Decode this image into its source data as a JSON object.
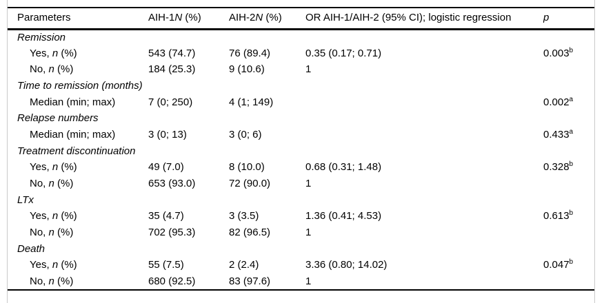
{
  "colors": {
    "rule_black": "#000000",
    "frame_gray": "#c9c9c9",
    "text": "#000000",
    "background": "#ffffff"
  },
  "table": {
    "header": [
      {
        "id": "parameters",
        "segments": [
          {
            "text": "Parameters"
          }
        ]
      },
      {
        "id": "aih1",
        "segments": [
          {
            "text": "AIH-1"
          },
          {
            "text": "N",
            "italic": true
          },
          {
            "text": " (%)"
          }
        ]
      },
      {
        "id": "aih2",
        "segments": [
          {
            "text": "AIH-2"
          },
          {
            "text": "N",
            "italic": true
          },
          {
            "text": " (%)"
          }
        ]
      },
      {
        "id": "or",
        "segments": [
          {
            "text": "OR AIH-1/AIH-2 (95% CI); logistic regression"
          }
        ]
      },
      {
        "id": "p",
        "segments": [
          {
            "text": "p",
            "italic": true
          }
        ]
      }
    ],
    "rows": [
      {
        "type": "section",
        "segments": [
          {
            "text": "Remission",
            "italic": true
          }
        ]
      },
      {
        "type": "data",
        "segments": [
          {
            "text": "Yes, "
          },
          {
            "text": "n",
            "italic": true
          },
          {
            "text": " (%)"
          }
        ],
        "aih1": "543 (74.7)",
        "aih2": "76 (89.4)",
        "or": "0.35 (0.17; 0.71)",
        "p": "0.003",
        "p_sup": "b"
      },
      {
        "type": "data",
        "segments": [
          {
            "text": "No, "
          },
          {
            "text": "n",
            "italic": true
          },
          {
            "text": " (%)"
          }
        ],
        "aih1": "184 (25.3)",
        "aih2": "9 (10.6)",
        "or": "1",
        "p": "",
        "p_sup": ""
      },
      {
        "type": "section",
        "segments": [
          {
            "text": "Time to remission (months)",
            "italic": true
          }
        ]
      },
      {
        "type": "data",
        "segments": [
          {
            "text": "Median (min; max)"
          }
        ],
        "aih1": "7 (0; 250)",
        "aih2": "4 (1; 149)",
        "or": "",
        "p": "0.002",
        "p_sup": "a"
      },
      {
        "type": "section",
        "segments": [
          {
            "text": "Relapse numbers",
            "italic": true
          }
        ]
      },
      {
        "type": "data",
        "segments": [
          {
            "text": "Median (min; max)"
          }
        ],
        "aih1": "3 (0; 13)",
        "aih2": "3 (0; 6)",
        "or": "",
        "p": "0.433",
        "p_sup": "a"
      },
      {
        "type": "section",
        "segments": [
          {
            "text": "Treatment discontinuation",
            "italic": true
          }
        ]
      },
      {
        "type": "data",
        "segments": [
          {
            "text": "Yes, "
          },
          {
            "text": "n",
            "italic": true
          },
          {
            "text": " (%)"
          }
        ],
        "aih1": "49 (7.0)",
        "aih2": "8 (10.0)",
        "or": "0.68 (0.31; 1.48)",
        "p": "0.328",
        "p_sup": "b"
      },
      {
        "type": "data",
        "segments": [
          {
            "text": "No, "
          },
          {
            "text": "n",
            "italic": true
          },
          {
            "text": " (%)"
          }
        ],
        "aih1": "653 (93.0)",
        "aih2": "72 (90.0)",
        "or": "1",
        "p": "",
        "p_sup": ""
      },
      {
        "type": "section",
        "segments": [
          {
            "text": "LTx",
            "italic": true
          }
        ]
      },
      {
        "type": "data",
        "segments": [
          {
            "text": "Yes, "
          },
          {
            "text": "n",
            "italic": true
          },
          {
            "text": " (%)"
          }
        ],
        "aih1": "35 (4.7)",
        "aih2": "3 (3.5)",
        "or": "1.36 (0.41; 4.53)",
        "p": "0.613",
        "p_sup": "b"
      },
      {
        "type": "data",
        "segments": [
          {
            "text": "No, "
          },
          {
            "text": "n",
            "italic": true
          },
          {
            "text": " (%)"
          }
        ],
        "aih1": "702 (95.3)",
        "aih2": "82 (96.5)",
        "or": "1",
        "p": "",
        "p_sup": ""
      },
      {
        "type": "section",
        "segments": [
          {
            "text": "Death",
            "italic": true
          }
        ]
      },
      {
        "type": "data",
        "segments": [
          {
            "text": "Yes, "
          },
          {
            "text": "n",
            "italic": true
          },
          {
            "text": " (%)"
          }
        ],
        "aih1": "55 (7.5)",
        "aih2": "2 (2.4)",
        "or": "3.36 (0.80; 14.02)",
        "p": "0.047",
        "p_sup": "b"
      },
      {
        "type": "data",
        "segments": [
          {
            "text": "No, "
          },
          {
            "text": "n",
            "italic": true
          },
          {
            "text": " (%)"
          }
        ],
        "aih1": "680 (92.5)",
        "aih2": "83 (97.6)",
        "or": "1",
        "p": "",
        "p_sup": ""
      }
    ]
  }
}
